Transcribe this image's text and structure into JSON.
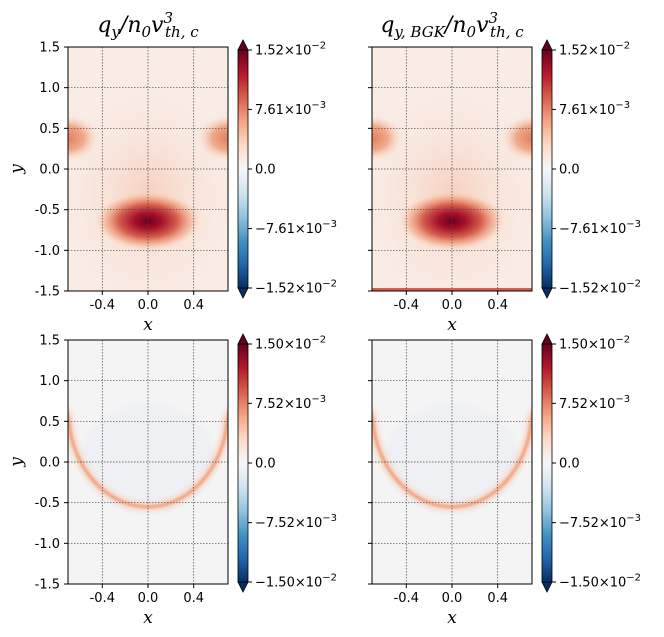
{
  "chart_data": [
    {
      "type": "heatmap",
      "title": "q_y/n_0v^3_{th,c}",
      "title_parts": {
        "main": "q",
        "sub": "y",
        "mid": "/n",
        "sub0": "0",
        "v": "v",
        "sup": "3",
        "sub2": "th, c"
      },
      "xlabel": "x",
      "ylabel": "y",
      "xticks": [
        "-0.4",
        "0.0",
        "0.4"
      ],
      "yticks": [
        "1.5",
        "1.0",
        "0.5",
        "0.0",
        "-0.5",
        "-1.0",
        "-1.5"
      ],
      "xlim": [
        -0.7,
        0.7
      ],
      "ylim": [
        -1.5,
        1.5
      ],
      "colorbar": {
        "min": -0.0152,
        "max": 0.0152,
        "cmap": "RdBu_r",
        "extend": "both",
        "ticks": [
          {
            "value": 0.0152,
            "mant": "1.52",
            "exp": "−2"
          },
          {
            "value": 0.00761,
            "mant": "7.61",
            "exp": "−3"
          },
          {
            "value": 0.0,
            "mant": "0.0",
            "exp": ""
          },
          {
            "value": -0.00761,
            "mant": "−7.61",
            "exp": "−3"
          },
          {
            "value": -0.0152,
            "mant": "−1.52",
            "exp": "−2"
          }
        ]
      },
      "features": "central strong positive lobe near (0,-0.6) peaking ~1.5e-2; positive side lobes near x=±0.7, y=0.4"
    },
    {
      "type": "heatmap",
      "title": "q_{y,BGK}/n_0v^3_{th,c}",
      "title_parts": {
        "main": "q",
        "sub": "y, BGK",
        "mid": "/n",
        "sub0": "0",
        "v": "v",
        "sup": "3",
        "sub2": "th, c"
      },
      "xlabel": "x",
      "ylabel": "",
      "xticks": [
        "-0.4",
        "0.0",
        "0.4"
      ],
      "yticks": [],
      "xlim": [
        -0.7,
        0.7
      ],
      "ylim": [
        -1.5,
        1.5
      ],
      "colorbar": {
        "min": -0.0152,
        "max": 0.0152,
        "cmap": "RdBu_r",
        "extend": "both",
        "ticks": [
          {
            "value": 0.0152,
            "mant": "1.52",
            "exp": "−2"
          },
          {
            "value": 0.00761,
            "mant": "7.61",
            "exp": "−3"
          },
          {
            "value": 0.0,
            "mant": "0.0",
            "exp": ""
          },
          {
            "value": -0.00761,
            "mant": "−7.61",
            "exp": "−3"
          },
          {
            "value": -0.0152,
            "mant": "−1.52",
            "exp": "−2"
          }
        ]
      },
      "features": "same structure as left panel, thin bright line along bottom edge"
    },
    {
      "type": "heatmap",
      "title": "",
      "xlabel": "x",
      "ylabel": "y",
      "xticks": [
        "-0.4",
        "0.0",
        "0.4"
      ],
      "yticks": [
        "1.5",
        "1.0",
        "0.5",
        "0.0",
        "-0.5",
        "-1.0",
        "-1.5"
      ],
      "xlim": [
        -0.7,
        0.7
      ],
      "ylim": [
        -1.5,
        1.5
      ],
      "colorbar": {
        "min": -0.015,
        "max": 0.015,
        "cmap": "RdBu_r",
        "extend": "both",
        "ticks": [
          {
            "value": 0.015,
            "mant": "1.50",
            "exp": "−2"
          },
          {
            "value": 0.00752,
            "mant": "7.52",
            "exp": "−3"
          },
          {
            "value": 0.0,
            "mant": "0.0",
            "exp": ""
          },
          {
            "value": -0.00752,
            "mant": "−7.52",
            "exp": "−3"
          },
          {
            "value": -0.015,
            "mant": "−1.50",
            "exp": "−2"
          }
        ]
      },
      "features": "thin positive arc (U shape) with minimum near (0,-0.55), rising to y≈0.65 at the side edges"
    },
    {
      "type": "heatmap",
      "title": "",
      "xlabel": "x",
      "ylabel": "",
      "xticks": [
        "-0.4",
        "0.0",
        "0.4"
      ],
      "yticks": [],
      "xlim": [
        -0.7,
        0.7
      ],
      "ylim": [
        -1.5,
        1.5
      ],
      "colorbar": {
        "min": -0.015,
        "max": 0.015,
        "cmap": "RdBu_r",
        "extend": "both",
        "ticks": [
          {
            "value": 0.015,
            "mant": "1.50",
            "exp": "−2"
          },
          {
            "value": 0.00752,
            "mant": "7.52",
            "exp": "−3"
          },
          {
            "value": 0.0,
            "mant": "0.0",
            "exp": ""
          },
          {
            "value": -0.00752,
            "mant": "−7.52",
            "exp": "−3"
          },
          {
            "value": -0.015,
            "mant": "−1.50",
            "exp": "−2"
          }
        ]
      },
      "features": "same thin positive arc as left panel"
    }
  ]
}
